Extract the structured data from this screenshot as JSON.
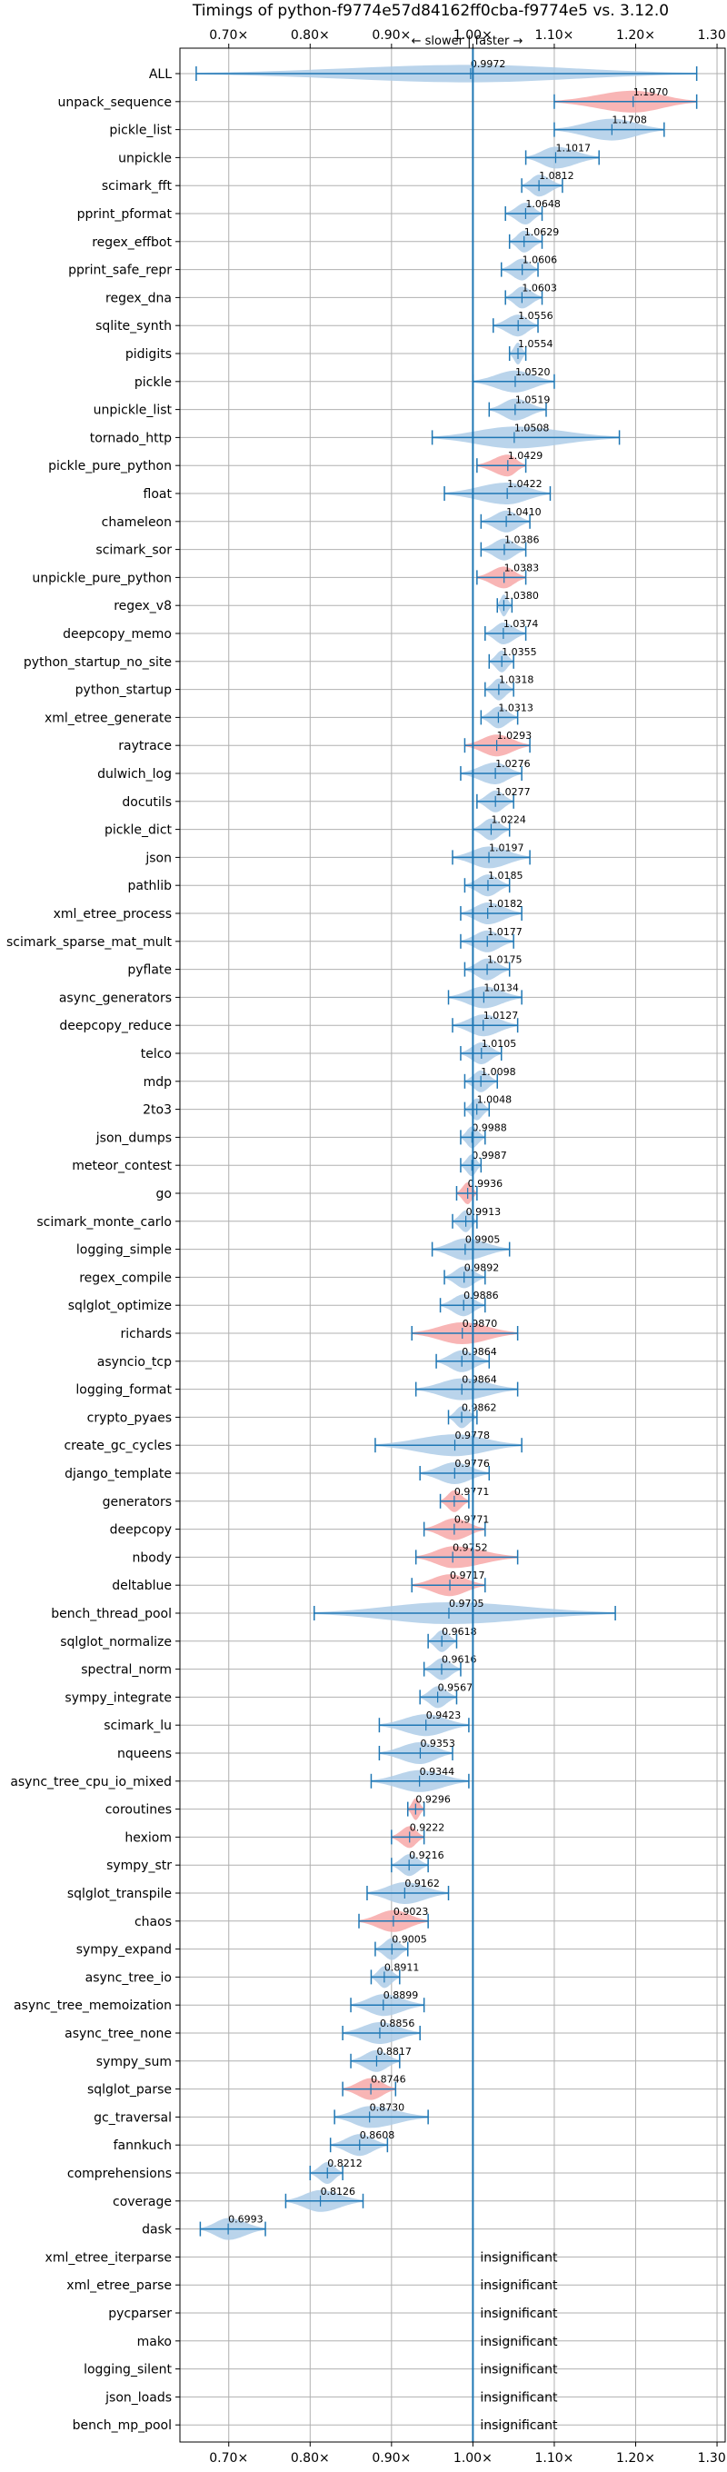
{
  "chart_data": {
    "type": "violin",
    "title": "Timings of python-f9774e57d84162ff0cba-f9774e5 vs. 3.12.0",
    "direction_label": "← slower | faster →",
    "xlim": [
      0.64,
      1.31
    ],
    "xticks": [
      {
        "value": 0.7,
        "label": "0.70×"
      },
      {
        "value": 0.8,
        "label": "0.80×"
      },
      {
        "value": 0.9,
        "label": "0.90×"
      },
      {
        "value": 1.0,
        "label": "1.00×"
      },
      {
        "value": 1.1,
        "label": "1.10×"
      },
      {
        "value": 1.2,
        "label": "1.20×"
      },
      {
        "value": 1.3,
        "label": "1.30×"
      }
    ],
    "grid": true,
    "reference_line": 1.0,
    "colors": {
      "faster": "#aecde8",
      "slower": "#f7a8a8",
      "line": "#1f77b4"
    },
    "benchmarks": [
      {
        "name": "ALL",
        "value": 0.9972,
        "label": "0.9972",
        "lo": 0.66,
        "hi": 1.275,
        "width": 0.04,
        "color": "blue",
        "dist": "all"
      },
      {
        "name": "unpack_sequence",
        "value": 1.197,
        "label": "1.1970",
        "lo": 1.1,
        "hi": 1.275,
        "width": 0.08,
        "color": "red"
      },
      {
        "name": "pickle_list",
        "value": 1.1708,
        "label": "1.1708",
        "lo": 1.1,
        "hi": 1.235,
        "width": 0.07,
        "color": "blue"
      },
      {
        "name": "unpickle",
        "value": 1.1017,
        "label": "1.1017",
        "lo": 1.065,
        "hi": 1.155,
        "width": 0.04,
        "color": "blue"
      },
      {
        "name": "scimark_fft",
        "value": 1.0812,
        "label": "1.0812",
        "lo": 1.06,
        "hi": 1.11,
        "width": 0.025,
        "color": "blue"
      },
      {
        "name": "pprint_pformat",
        "value": 1.0648,
        "label": "1.0648",
        "lo": 1.04,
        "hi": 1.085,
        "width": 0.02,
        "color": "blue"
      },
      {
        "name": "regex_effbot",
        "value": 1.0629,
        "label": "1.0629",
        "lo": 1.045,
        "hi": 1.085,
        "width": 0.02,
        "color": "blue"
      },
      {
        "name": "pprint_safe_repr",
        "value": 1.0606,
        "label": "1.0606",
        "lo": 1.035,
        "hi": 1.08,
        "width": 0.02,
        "color": "blue"
      },
      {
        "name": "regex_dna",
        "value": 1.0603,
        "label": "1.0603",
        "lo": 1.04,
        "hi": 1.085,
        "width": 0.02,
        "color": "blue"
      },
      {
        "name": "sqlite_synth",
        "value": 1.0556,
        "label": "1.0556",
        "lo": 1.025,
        "hi": 1.08,
        "width": 0.02,
        "color": "blue"
      },
      {
        "name": "pidigits",
        "value": 1.0554,
        "label": "1.0554",
        "lo": 1.045,
        "hi": 1.065,
        "width": 0.012,
        "color": "blue"
      },
      {
        "name": "pickle",
        "value": 1.052,
        "label": "1.0520",
        "lo": 1.0,
        "hi": 1.1,
        "width": 0.04,
        "color": "blue"
      },
      {
        "name": "unpickle_list",
        "value": 1.0519,
        "label": "1.0519",
        "lo": 1.02,
        "hi": 1.09,
        "width": 0.03,
        "color": "blue"
      },
      {
        "name": "tornado_http",
        "value": 1.0508,
        "label": "1.0508",
        "lo": 0.95,
        "hi": 1.18,
        "width": 0.09,
        "color": "blue"
      },
      {
        "name": "pickle_pure_python",
        "value": 1.0429,
        "label": "1.0429",
        "lo": 1.005,
        "hi": 1.065,
        "width": 0.03,
        "color": "red"
      },
      {
        "name": "float",
        "value": 1.0422,
        "label": "1.0422",
        "lo": 0.965,
        "hi": 1.095,
        "width": 0.045,
        "color": "blue"
      },
      {
        "name": "chameleon",
        "value": 1.041,
        "label": "1.0410",
        "lo": 1.01,
        "hi": 1.07,
        "width": 0.025,
        "color": "blue"
      },
      {
        "name": "scimark_sor",
        "value": 1.0386,
        "label": "1.0386",
        "lo": 1.01,
        "hi": 1.065,
        "width": 0.025,
        "color": "blue"
      },
      {
        "name": "unpickle_pure_python",
        "value": 1.0383,
        "label": "1.0383",
        "lo": 1.005,
        "hi": 1.065,
        "width": 0.03,
        "color": "red"
      },
      {
        "name": "regex_v8",
        "value": 1.038,
        "label": "1.0380",
        "lo": 1.03,
        "hi": 1.048,
        "width": 0.01,
        "color": "blue"
      },
      {
        "name": "deepcopy_memo",
        "value": 1.0374,
        "label": "1.0374",
        "lo": 1.015,
        "hi": 1.065,
        "width": 0.02,
        "color": "blue"
      },
      {
        "name": "python_startup_no_site",
        "value": 1.0355,
        "label": "1.0355",
        "lo": 1.02,
        "hi": 1.05,
        "width": 0.015,
        "color": "blue"
      },
      {
        "name": "python_startup",
        "value": 1.0318,
        "label": "1.0318",
        "lo": 1.015,
        "hi": 1.05,
        "width": 0.015,
        "color": "blue"
      },
      {
        "name": "xml_etree_generate",
        "value": 1.0313,
        "label": "1.0313",
        "lo": 1.01,
        "hi": 1.055,
        "width": 0.02,
        "color": "blue"
      },
      {
        "name": "raytrace",
        "value": 1.0293,
        "label": "1.0293",
        "lo": 0.99,
        "hi": 1.07,
        "width": 0.035,
        "color": "red"
      },
      {
        "name": "dulwich_log",
        "value": 1.0276,
        "label": "1.0276",
        "lo": 0.985,
        "hi": 1.06,
        "width": 0.03,
        "color": "blue"
      },
      {
        "name": "docutils",
        "value": 1.0277,
        "label": "1.0277",
        "lo": 1.005,
        "hi": 1.05,
        "width": 0.02,
        "color": "blue"
      },
      {
        "name": "pickle_dict",
        "value": 1.0224,
        "label": "1.0224",
        "lo": 1.0,
        "hi": 1.045,
        "width": 0.02,
        "color": "blue"
      },
      {
        "name": "json",
        "value": 1.0197,
        "label": "1.0197",
        "lo": 0.975,
        "hi": 1.07,
        "width": 0.03,
        "color": "blue"
      },
      {
        "name": "pathlib",
        "value": 1.0185,
        "label": "1.0185",
        "lo": 0.99,
        "hi": 1.045,
        "width": 0.025,
        "color": "blue"
      },
      {
        "name": "xml_etree_process",
        "value": 1.0182,
        "label": "1.0182",
        "lo": 0.985,
        "hi": 1.06,
        "width": 0.025,
        "color": "blue"
      },
      {
        "name": "scimark_sparse_mat_mult",
        "value": 1.0177,
        "label": "1.0177",
        "lo": 0.985,
        "hi": 1.05,
        "width": 0.025,
        "color": "blue"
      },
      {
        "name": "pyflate",
        "value": 1.0175,
        "label": "1.0175",
        "lo": 0.99,
        "hi": 1.045,
        "width": 0.02,
        "color": "blue"
      },
      {
        "name": "async_generators",
        "value": 1.0134,
        "label": "1.0134",
        "lo": 0.97,
        "hi": 1.06,
        "width": 0.035,
        "color": "blue"
      },
      {
        "name": "deepcopy_reduce",
        "value": 1.0127,
        "label": "1.0127",
        "lo": 0.975,
        "hi": 1.055,
        "width": 0.03,
        "color": "blue"
      },
      {
        "name": "telco",
        "value": 1.0105,
        "label": "1.0105",
        "lo": 0.985,
        "hi": 1.035,
        "width": 0.02,
        "color": "blue"
      },
      {
        "name": "mdp",
        "value": 1.0098,
        "label": "1.0098",
        "lo": 0.99,
        "hi": 1.03,
        "width": 0.02,
        "color": "blue"
      },
      {
        "name": "2to3",
        "value": 1.0048,
        "label": "1.0048",
        "lo": 0.99,
        "hi": 1.02,
        "width": 0.015,
        "color": "blue"
      },
      {
        "name": "json_dumps",
        "value": 0.9988,
        "label": "0.9988",
        "lo": 0.985,
        "hi": 1.015,
        "width": 0.015,
        "color": "blue"
      },
      {
        "name": "meteor_contest",
        "value": 0.9987,
        "label": "0.9987",
        "lo": 0.985,
        "hi": 1.01,
        "width": 0.012,
        "color": "blue"
      },
      {
        "name": "go",
        "value": 0.9936,
        "label": "0.9936",
        "lo": 0.98,
        "hi": 1.005,
        "width": 0.012,
        "color": "red"
      },
      {
        "name": "scimark_monte_carlo",
        "value": 0.9913,
        "label": "0.9913",
        "lo": 0.975,
        "hi": 1.005,
        "width": 0.015,
        "color": "blue"
      },
      {
        "name": "logging_simple",
        "value": 0.9905,
        "label": "0.9905",
        "lo": 0.95,
        "hi": 1.045,
        "width": 0.035,
        "color": "blue"
      },
      {
        "name": "regex_compile",
        "value": 0.9892,
        "label": "0.9892",
        "lo": 0.965,
        "hi": 1.015,
        "width": 0.02,
        "color": "blue"
      },
      {
        "name": "sqlglot_optimize",
        "value": 0.9886,
        "label": "0.9886",
        "lo": 0.96,
        "hi": 1.015,
        "width": 0.025,
        "color": "blue"
      },
      {
        "name": "richards",
        "value": 0.987,
        "label": "0.9870",
        "lo": 0.925,
        "hi": 1.055,
        "width": 0.05,
        "color": "red"
      },
      {
        "name": "asyncio_tcp",
        "value": 0.9864,
        "label": "0.9864",
        "lo": 0.955,
        "hi": 1.02,
        "width": 0.025,
        "color": "blue"
      },
      {
        "name": "logging_format",
        "value": 0.9864,
        "label": "0.9864",
        "lo": 0.93,
        "hi": 1.055,
        "width": 0.045,
        "color": "blue"
      },
      {
        "name": "crypto_pyaes",
        "value": 0.9862,
        "label": "0.9862",
        "lo": 0.97,
        "hi": 1.005,
        "width": 0.015,
        "color": "blue"
      },
      {
        "name": "create_gc_cycles",
        "value": 0.9778,
        "label": "0.9778",
        "lo": 0.88,
        "hi": 1.06,
        "width": 0.07,
        "color": "blue"
      },
      {
        "name": "django_template",
        "value": 0.9776,
        "label": "0.9776",
        "lo": 0.935,
        "hi": 1.02,
        "width": 0.035,
        "color": "blue"
      },
      {
        "name": "generators",
        "value": 0.9771,
        "label": "0.9771",
        "lo": 0.96,
        "hi": 0.995,
        "width": 0.015,
        "color": "red"
      },
      {
        "name": "deepcopy",
        "value": 0.9771,
        "label": "0.9771",
        "lo": 0.94,
        "hi": 1.015,
        "width": 0.03,
        "color": "red"
      },
      {
        "name": "nbody",
        "value": 0.9752,
        "label": "0.9752",
        "lo": 0.93,
        "hi": 1.055,
        "width": 0.04,
        "color": "red"
      },
      {
        "name": "deltablue",
        "value": 0.9717,
        "label": "0.9717",
        "lo": 0.925,
        "hi": 1.015,
        "width": 0.035,
        "color": "red"
      },
      {
        "name": "bench_thread_pool",
        "value": 0.9705,
        "label": "0.9705",
        "lo": 0.805,
        "hi": 1.175,
        "width": 0.12,
        "color": "blue"
      },
      {
        "name": "sqlglot_normalize",
        "value": 0.9618,
        "label": "0.9618",
        "lo": 0.945,
        "hi": 0.98,
        "width": 0.015,
        "color": "blue"
      },
      {
        "name": "spectral_norm",
        "value": 0.9616,
        "label": "0.9616",
        "lo": 0.94,
        "hi": 0.985,
        "width": 0.02,
        "color": "blue"
      },
      {
        "name": "sympy_integrate",
        "value": 0.9567,
        "label": "0.9567",
        "lo": 0.935,
        "hi": 0.98,
        "width": 0.02,
        "color": "blue"
      },
      {
        "name": "scimark_lu",
        "value": 0.9423,
        "label": "0.9423",
        "lo": 0.885,
        "hi": 0.995,
        "width": 0.04,
        "color": "blue"
      },
      {
        "name": "nqueens",
        "value": 0.9353,
        "label": "0.9353",
        "lo": 0.885,
        "hi": 0.975,
        "width": 0.035,
        "color": "blue"
      },
      {
        "name": "async_tree_cpu_io_mixed",
        "value": 0.9344,
        "label": "0.9344",
        "lo": 0.875,
        "hi": 0.995,
        "width": 0.045,
        "color": "blue"
      },
      {
        "name": "coroutines",
        "value": 0.9296,
        "label": "0.9296",
        "lo": 0.92,
        "hi": 0.94,
        "width": 0.01,
        "color": "red"
      },
      {
        "name": "hexiom",
        "value": 0.9222,
        "label": "0.9222",
        "lo": 0.9,
        "hi": 0.94,
        "width": 0.015,
        "color": "red"
      },
      {
        "name": "sympy_str",
        "value": 0.9216,
        "label": "0.9216",
        "lo": 0.9,
        "hi": 0.945,
        "width": 0.02,
        "color": "blue"
      },
      {
        "name": "sqlglot_transpile",
        "value": 0.9162,
        "label": "0.9162",
        "lo": 0.87,
        "hi": 0.97,
        "width": 0.035,
        "color": "blue"
      },
      {
        "name": "chaos",
        "value": 0.9023,
        "label": "0.9023",
        "lo": 0.86,
        "hi": 0.945,
        "width": 0.03,
        "color": "red"
      },
      {
        "name": "sympy_expand",
        "value": 0.9005,
        "label": "0.9005",
        "lo": 0.88,
        "hi": 0.92,
        "width": 0.02,
        "color": "blue"
      },
      {
        "name": "async_tree_io",
        "value": 0.8911,
        "label": "0.8911",
        "lo": 0.875,
        "hi": 0.91,
        "width": 0.015,
        "color": "blue"
      },
      {
        "name": "async_tree_memoization",
        "value": 0.8899,
        "label": "0.8899",
        "lo": 0.85,
        "hi": 0.94,
        "width": 0.035,
        "color": "blue"
      },
      {
        "name": "async_tree_none",
        "value": 0.8856,
        "label": "0.8856",
        "lo": 0.84,
        "hi": 0.935,
        "width": 0.035,
        "color": "blue"
      },
      {
        "name": "sympy_sum",
        "value": 0.8817,
        "label": "0.8817",
        "lo": 0.85,
        "hi": 0.91,
        "width": 0.025,
        "color": "blue"
      },
      {
        "name": "sqlglot_parse",
        "value": 0.8746,
        "label": "0.8746",
        "lo": 0.84,
        "hi": 0.905,
        "width": 0.025,
        "color": "red"
      },
      {
        "name": "gc_traversal",
        "value": 0.873,
        "label": "0.8730",
        "lo": 0.83,
        "hi": 0.945,
        "width": 0.04,
        "color": "blue"
      },
      {
        "name": "fannkuch",
        "value": 0.8608,
        "label": "0.8608",
        "lo": 0.825,
        "hi": 0.895,
        "width": 0.025,
        "color": "blue"
      },
      {
        "name": "comprehensions",
        "value": 0.8212,
        "label": "0.8212",
        "lo": 0.8,
        "hi": 0.84,
        "width": 0.02,
        "color": "blue"
      },
      {
        "name": "coverage",
        "value": 0.8126,
        "label": "0.8126",
        "lo": 0.77,
        "hi": 0.865,
        "width": 0.03,
        "color": "blue"
      },
      {
        "name": "dask",
        "value": 0.6993,
        "label": "0.6993",
        "lo": 0.665,
        "hi": 0.745,
        "width": 0.035,
        "color": "blue"
      },
      {
        "name": "xml_etree_iterparse",
        "insignificant": true
      },
      {
        "name": "xml_etree_parse",
        "insignificant": true
      },
      {
        "name": "pycparser",
        "insignificant": true
      },
      {
        "name": "mako",
        "insignificant": true
      },
      {
        "name": "logging_silent",
        "insignificant": true
      },
      {
        "name": "json_loads",
        "insignificant": true
      },
      {
        "name": "bench_mp_pool",
        "insignificant": true
      }
    ],
    "insignificant_label": "insignificant"
  }
}
